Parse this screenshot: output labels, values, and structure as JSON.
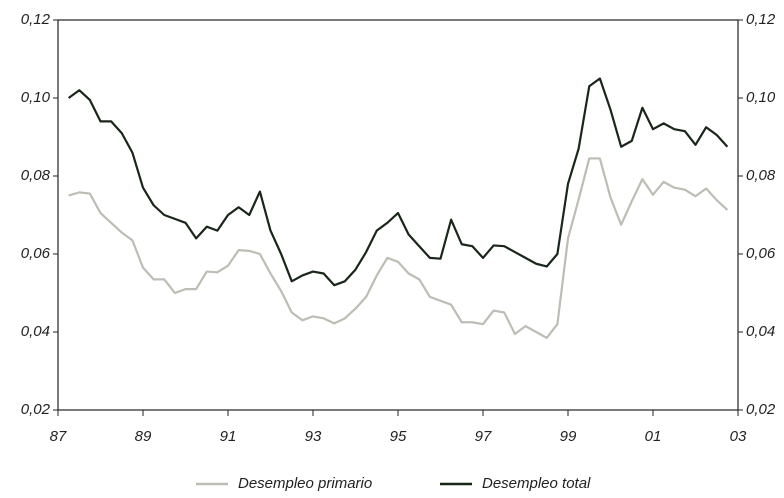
{
  "chart_data": {
    "type": "line",
    "x": [
      1987.25,
      1987.5,
      1987.75,
      1988,
      1988.25,
      1988.5,
      1988.75,
      1989,
      1989.25,
      1989.5,
      1989.75,
      1990,
      1990.25,
      1990.5,
      1990.75,
      1991,
      1991.25,
      1991.5,
      1991.75,
      1992,
      1992.25,
      1992.5,
      1992.75,
      1993,
      1993.25,
      1993.5,
      1993.75,
      1994,
      1994.25,
      1994.5,
      1994.75,
      1995,
      1995.25,
      1995.5,
      1995.75,
      1996,
      1996.25,
      1996.5,
      1996.75,
      1997,
      1997.25,
      1997.5,
      1997.75,
      1998,
      1998.25,
      1998.5,
      1998.75,
      1999,
      1999.25,
      1999.5,
      1999.75,
      2000,
      2000.25,
      2000.5,
      2000.75,
      2001,
      2001.25,
      2001.5,
      2001.75,
      2002,
      2002.25,
      2002.5,
      2002.75
    ],
    "series": [
      {
        "name": "Desempleo primario",
        "color": "#bdbdb5",
        "values": [
          0.075,
          0.0758,
          0.0755,
          0.0705,
          0.068,
          0.0655,
          0.0635,
          0.0565,
          0.0535,
          0.0535,
          0.05,
          0.051,
          0.051,
          0.0555,
          0.0553,
          0.057,
          0.061,
          0.0608,
          0.06,
          0.055,
          0.0505,
          0.045,
          0.043,
          0.044,
          0.0435,
          0.0422,
          0.0435,
          0.046,
          0.049,
          0.0545,
          0.059,
          0.058,
          0.055,
          0.0535,
          0.049,
          0.048,
          0.047,
          0.0425,
          0.0425,
          0.042,
          0.0455,
          0.045,
          0.0395,
          0.0415,
          0.04,
          0.0385,
          0.042,
          0.064,
          0.074,
          0.0845,
          0.0845,
          0.0745,
          0.0675,
          0.0735,
          0.0792,
          0.0752,
          0.0785,
          0.077,
          0.0765,
          0.0748,
          0.0768,
          0.0738,
          0.0713
        ]
      },
      {
        "name": "Desempleo total",
        "color": "#1a261a",
        "values": [
          0.1,
          0.102,
          0.0995,
          0.094,
          0.094,
          0.091,
          0.086,
          0.077,
          0.0725,
          0.07,
          0.069,
          0.068,
          0.064,
          0.067,
          0.066,
          0.07,
          0.072,
          0.07,
          0.076,
          0.066,
          0.06,
          0.053,
          0.0545,
          0.0555,
          0.055,
          0.052,
          0.053,
          0.056,
          0.0605,
          0.066,
          0.068,
          0.0705,
          0.065,
          0.062,
          0.059,
          0.0588,
          0.0688,
          0.0625,
          0.062,
          0.059,
          0.0622,
          0.062,
          0.0605,
          0.059,
          0.0575,
          0.0568,
          0.06,
          0.078,
          0.087,
          0.103,
          0.105,
          0.097,
          0.0875,
          0.089,
          0.0975,
          0.092,
          0.0935,
          0.092,
          0.0915,
          0.088,
          0.0925,
          0.0905,
          0.0875
        ]
      }
    ],
    "xlim": [
      1987,
      2003
    ],
    "xticks": [
      {
        "value": 1987,
        "label": "87"
      },
      {
        "value": 1989,
        "label": "89"
      },
      {
        "value": 1991,
        "label": "91"
      },
      {
        "value": 1993,
        "label": "93"
      },
      {
        "value": 1995,
        "label": "95"
      },
      {
        "value": 1997,
        "label": "97"
      },
      {
        "value": 1999,
        "label": "99"
      },
      {
        "value": 2001,
        "label": "01"
      },
      {
        "value": 2003,
        "label": "03"
      }
    ],
    "ylim": [
      0.02,
      0.12
    ],
    "yticks": [
      {
        "value": 0.02,
        "label": "0,02"
      },
      {
        "value": 0.04,
        "label": "0,04"
      },
      {
        "value": 0.06,
        "label": "0,06"
      },
      {
        "value": 0.08,
        "label": "0,08"
      },
      {
        "value": 0.1,
        "label": "0,10"
      },
      {
        "value": 0.12,
        "label": "0,12"
      }
    ],
    "y2lim": [
      0.02,
      0.12
    ],
    "y2ticks": [
      {
        "value": 0.02,
        "label": "0,02"
      },
      {
        "value": 0.04,
        "label": "0,04"
      },
      {
        "value": 0.06,
        "label": "0,06"
      },
      {
        "value": 0.08,
        "label": "0,08"
      },
      {
        "value": 0.1,
        "label": "0,10"
      },
      {
        "value": 0.12,
        "label": "0,12"
      }
    ],
    "legend": "bottom",
    "grid": false
  }
}
